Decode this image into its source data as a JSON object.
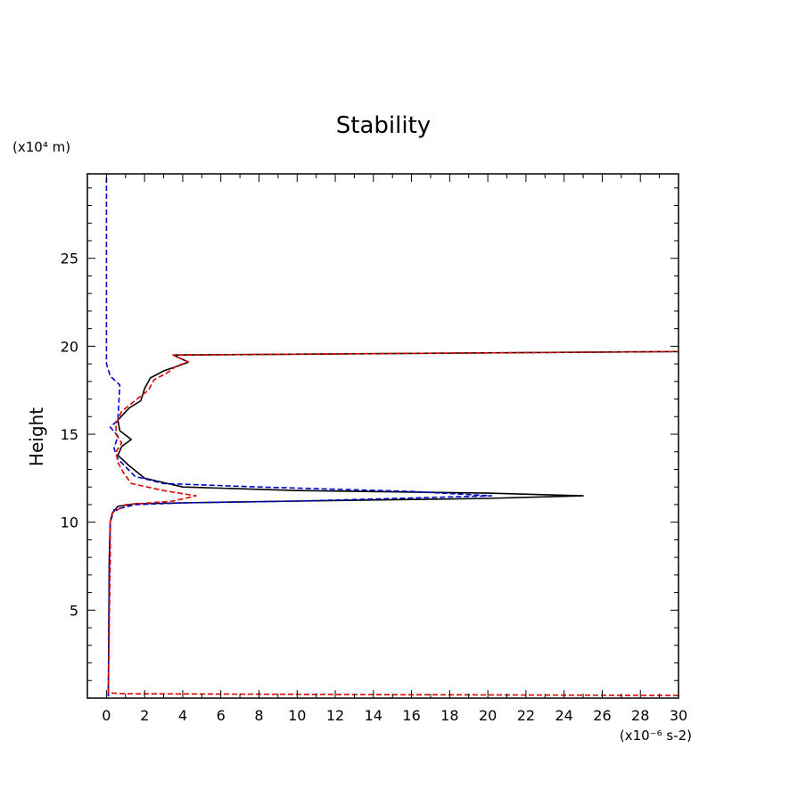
{
  "chart_data": {
    "type": "line",
    "title": "Stability",
    "xlabel": "",
    "ylabel": "Height",
    "x_unit_label": "(x10⁻⁶ s-2)",
    "y_unit_label": "(x10⁴ m)",
    "xlim": [
      -1,
      30
    ],
    "ylim": [
      0,
      29.8
    ],
    "x_ticks": [
      0,
      2,
      4,
      6,
      8,
      10,
      12,
      14,
      16,
      18,
      20,
      22,
      24,
      26,
      28,
      30
    ],
    "y_ticks": [
      5,
      10,
      15,
      20,
      25
    ],
    "grid": false,
    "series": [
      {
        "color": "#000000",
        "dash": "solid",
        "x": [
          0.1,
          0.15,
          0.2,
          0.3,
          0.6,
          1.5,
          4,
          10,
          20,
          25,
          20,
          10,
          4,
          2,
          1.2,
          0.6,
          0.8,
          1.3,
          0.7,
          0.6,
          1.2,
          1.8,
          2.0,
          2.3,
          3.0,
          3.8,
          4.3,
          3.5,
          30
        ],
        "y": [
          0.1,
          8.0,
          10.0,
          10.5,
          10.9,
          11.05,
          11.1,
          11.2,
          11.35,
          11.5,
          11.65,
          11.8,
          12.0,
          12.5,
          13.2,
          13.8,
          14.3,
          14.7,
          15.2,
          15.8,
          16.5,
          16.9,
          17.6,
          18.2,
          18.6,
          18.9,
          19.1,
          19.5,
          19.7
        ]
      },
      {
        "color": "#0000cc",
        "dash": "dashed",
        "x": [
          0.1,
          0.15,
          0.2,
          0.4,
          1.5,
          4,
          10,
          20.2,
          16,
          8,
          3,
          1.5,
          0.6,
          0.4,
          0.6,
          0.2,
          0.6,
          0.7,
          0.2,
          0.0,
          0.0
        ],
        "y": [
          0.1,
          8.0,
          10.0,
          10.7,
          11.0,
          11.1,
          11.2,
          11.5,
          11.75,
          12.0,
          12.2,
          12.6,
          13.6,
          14.2,
          14.9,
          15.4,
          15.8,
          17.8,
          18.3,
          19.0,
          29.8
        ]
      },
      {
        "color": "#dd0000",
        "dash": "dashed",
        "x": [
          30,
          15,
          1.0,
          0.1,
          0.2,
          0.2,
          0.3,
          1.0,
          3.5,
          4.7,
          3.0,
          1.3,
          0.9,
          0.6,
          0.5,
          0.8,
          0.5,
          0.5,
          0.8,
          1.6,
          2.2,
          2.5,
          3.2,
          3.7,
          4.3,
          3.5,
          30
        ],
        "y": [
          0.15,
          0.2,
          0.25,
          0.3,
          8.0,
          10.0,
          10.5,
          11.0,
          11.2,
          11.5,
          11.8,
          12.2,
          12.8,
          13.4,
          14.0,
          14.5,
          15.0,
          15.6,
          16.3,
          17.0,
          17.5,
          18.1,
          18.5,
          18.9,
          19.1,
          19.5,
          19.7
        ]
      }
    ]
  }
}
